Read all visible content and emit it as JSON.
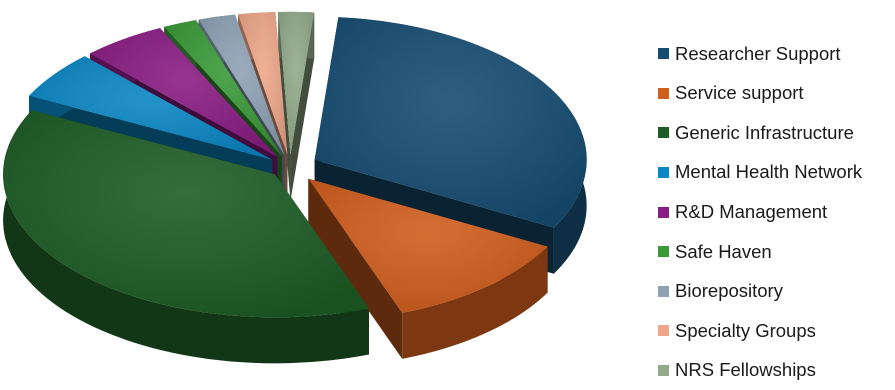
{
  "chart_data": {
    "type": "pie",
    "style": "3d-exploded",
    "title": "",
    "legend_position": "right",
    "slices": [
      {
        "label": "Researcher Support",
        "value": 31.5,
        "color": "#164d72"
      },
      {
        "label": "Service support",
        "value": 11.5,
        "color": "#d15e1d"
      },
      {
        "label": "Generic Infrastructure",
        "value": 38.0,
        "color": "#1e5c25"
      },
      {
        "label": "Mental Health Network",
        "value": 5.5,
        "color": "#0a87c4"
      },
      {
        "label": "R&D Management",
        "value": 5.0,
        "color": "#8a1d83"
      },
      {
        "label": "Safe Haven",
        "value": 2.0,
        "color": "#3a9a38"
      },
      {
        "label": "Biorepository",
        "value": 2.2,
        "color": "#8ea2b5"
      },
      {
        "label": "Specialty Groups",
        "value": 2.2,
        "color": "#eea78a"
      },
      {
        "label": "NRS Fellowships",
        "value": 2.1,
        "color": "#93aa8a"
      }
    ]
  }
}
